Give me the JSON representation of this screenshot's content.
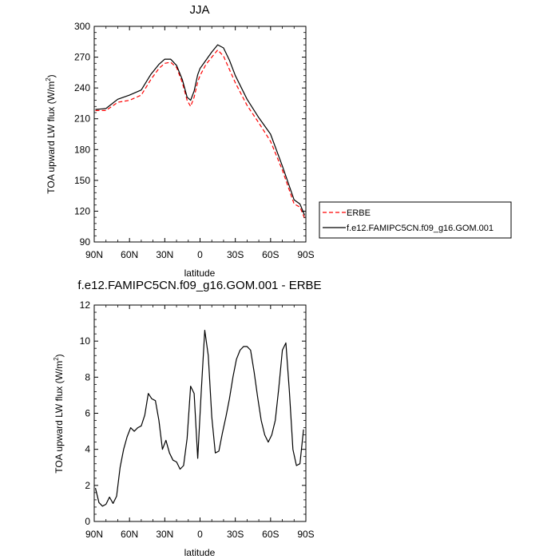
{
  "chart_data": [
    {
      "type": "line",
      "title": "JJA",
      "xlabel": "latitude",
      "ylabel": "TOA upward LW flux (W/m²)",
      "ylabel_main": "TOA upward LW flux (W/m",
      "ylabel_sup": "2",
      "ylabel_close": ")",
      "xlim": [
        90,
        -90
      ],
      "ylim": [
        90,
        300
      ],
      "xticks": [
        90,
        60,
        30,
        0,
        -30,
        -60,
        -90
      ],
      "xtick_labels": [
        "90N",
        "60N",
        "30N",
        "0",
        "30S",
        "60S",
        "90S"
      ],
      "yticks": [
        90,
        120,
        150,
        180,
        210,
        240,
        270,
        300
      ],
      "ytick_labels": [
        "90",
        "120",
        "150",
        "180",
        "210",
        "240",
        "270",
        "300"
      ],
      "legend": {
        "position": "right"
      },
      "series": [
        {
          "name": "ERBE",
          "color": "#ff0000",
          "dash": "dashed",
          "x": [
            89,
            80,
            70,
            60,
            50,
            42,
            35,
            30,
            25,
            20,
            15,
            11,
            8,
            5,
            2,
            0,
            -5,
            -10,
            -15,
            -20,
            -25,
            -30,
            -40,
            -50,
            -60,
            -70,
            -80,
            -85,
            -89
          ],
          "y": [
            218,
            218,
            226,
            228,
            233,
            248,
            259,
            264,
            265,
            260,
            245,
            228,
            222,
            231,
            246,
            252,
            263,
            270,
            277,
            271,
            258,
            245,
            223,
            206,
            188,
            160,
            127,
            124,
            113
          ]
        },
        {
          "name": "f.e12.FAMIPC5CN.f09_g16.GOM.001",
          "color": "#000000",
          "dash": "solid",
          "x": [
            89,
            80,
            70,
            60,
            50,
            42,
            35,
            30,
            25,
            20,
            15,
            11,
            8,
            5,
            2,
            0,
            -5,
            -10,
            -15,
            -20,
            -25,
            -30,
            -40,
            -50,
            -60,
            -70,
            -80,
            -85,
            -89
          ],
          "y": [
            219,
            220,
            229,
            233,
            238,
            253,
            263,
            268,
            268,
            262,
            248,
            231,
            228,
            237,
            253,
            259,
            267,
            275,
            282,
            279,
            267,
            252,
            229,
            211,
            195,
            164,
            131,
            127,
            116
          ]
        }
      ]
    },
    {
      "type": "line",
      "title": "f.e12.FAMIPC5CN.f09_g16.GOM.001 - ERBE",
      "xlabel": "latitude",
      "ylabel": "TOA upward LW flux (W/m²)",
      "ylabel_main": "TOA upward LW flux (W/m",
      "ylabel_sup": "2",
      "ylabel_close": ")",
      "xlim": [
        90,
        -90
      ],
      "ylim": [
        0,
        12
      ],
      "xticks": [
        90,
        60,
        30,
        0,
        -30,
        -60,
        -90
      ],
      "xtick_labels": [
        "90N",
        "60N",
        "30N",
        "0",
        "30S",
        "60S",
        "90S"
      ],
      "yticks": [
        0,
        2,
        4,
        6,
        8,
        10,
        12
      ],
      "ytick_labels": [
        "0",
        "2",
        "4",
        "6",
        "8",
        "10",
        "12"
      ],
      "series": [
        {
          "color": "#000000",
          "x": [
            89,
            86,
            83,
            80,
            77,
            74,
            71,
            68,
            65,
            62,
            59,
            56,
            53,
            50,
            47,
            44,
            41,
            38,
            35,
            32,
            29,
            26,
            23,
            20,
            17,
            14,
            11,
            8,
            5,
            2,
            -1,
            -4,
            -7,
            -10,
            -13,
            -16,
            -19,
            -22,
            -25,
            -28,
            -31,
            -34,
            -37,
            -40,
            -43,
            -46,
            -49,
            -52,
            -55,
            -58,
            -61,
            -64,
            -67,
            -70,
            -73,
            -76,
            -79,
            -82,
            -85,
            -88
          ],
          "y": [
            1.85,
            1.05,
            0.85,
            0.95,
            1.35,
            1.0,
            1.4,
            3.0,
            4.0,
            4.7,
            5.2,
            5.0,
            5.2,
            5.3,
            5.9,
            7.1,
            6.8,
            6.7,
            5.6,
            4.0,
            4.5,
            3.8,
            3.4,
            3.3,
            2.9,
            3.1,
            4.6,
            7.5,
            7.1,
            3.5,
            7.2,
            10.6,
            9.2,
            5.8,
            3.8,
            3.9,
            4.9,
            5.8,
            6.8,
            8.0,
            9.0,
            9.5,
            9.7,
            9.7,
            9.5,
            8.3,
            6.9,
            5.6,
            4.8,
            4.4,
            4.8,
            5.6,
            7.4,
            9.5,
            9.9,
            7.2,
            4.0,
            3.1,
            3.2,
            5.1
          ]
        }
      ]
    }
  ]
}
